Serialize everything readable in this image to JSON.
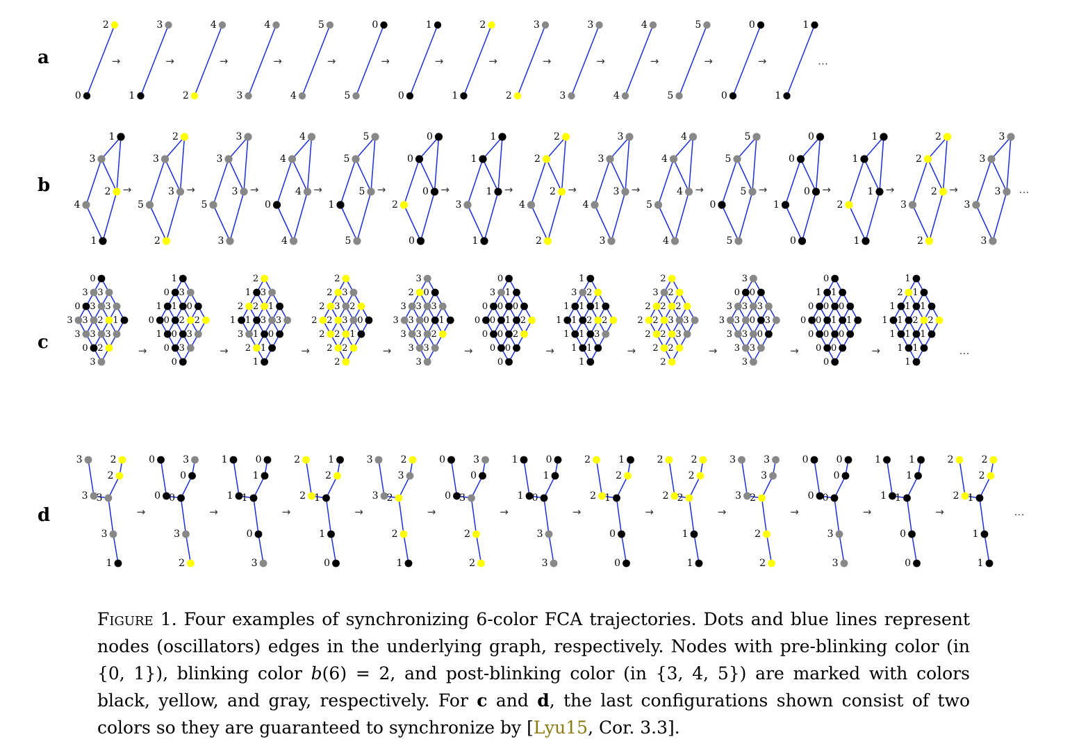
{
  "colors": {
    "pre_blinking": "#000000",
    "blinking": "#ffff00",
    "post_blinking": "#888888",
    "edge": "#1a2ed6"
  },
  "rows": [
    {
      "label": "a",
      "graph": "path-2",
      "nodes_per_config": 2,
      "configs": [
        [
          0,
          2
        ],
        [
          1,
          3
        ],
        [
          2,
          4
        ],
        [
          3,
          4
        ],
        [
          4,
          5
        ],
        [
          5,
          0
        ],
        [
          0,
          1
        ],
        [
          1,
          2
        ],
        [
          2,
          3
        ],
        [
          3,
          3
        ],
        [
          4,
          4
        ],
        [
          5,
          5
        ],
        [
          0,
          0
        ],
        [
          1,
          1
        ]
      ],
      "trailing": "…"
    },
    {
      "label": "b",
      "graph": "cycle-5",
      "nodes_per_config": 5,
      "configs": [
        [
          1,
          3,
          2,
          4,
          1
        ],
        [
          2,
          3,
          3,
          5,
          2
        ],
        [
          3,
          3,
          3,
          5,
          3
        ],
        [
          4,
          4,
          4,
          0,
          4
        ],
        [
          5,
          5,
          5,
          1,
          5
        ],
        [
          0,
          0,
          0,
          2,
          0
        ],
        [
          1,
          1,
          1,
          3,
          1
        ],
        [
          2,
          2,
          2,
          4,
          2
        ],
        [
          3,
          3,
          3,
          4,
          3
        ],
        [
          4,
          4,
          4,
          5,
          4
        ],
        [
          5,
          5,
          5,
          0,
          5
        ],
        [
          0,
          0,
          0,
          1,
          0
        ],
        [
          1,
          1,
          1,
          2,
          1
        ],
        [
          2,
          2,
          2,
          3,
          2
        ],
        [
          3,
          3,
          3,
          3,
          3
        ]
      ],
      "trailing": "…"
    },
    {
      "label": "c",
      "graph": "grid-4x4",
      "nodes_per_config": 16,
      "configs": [
        [
          0,
          3,
          3,
          1,
          3,
          3,
          2,
          3,
          0,
          3,
          3,
          2,
          3,
          3,
          0,
          3
        ],
        [
          1,
          3,
          0,
          2,
          0,
          1,
          2,
          3,
          1,
          0,
          0,
          3,
          0,
          1,
          0,
          0
        ],
        [
          2,
          3,
          1,
          3,
          1,
          2,
          3,
          0,
          2,
          1,
          1,
          1,
          1,
          3,
          2,
          1
        ],
        [
          2,
          3,
          2,
          0,
          2,
          3,
          3,
          1,
          2,
          2,
          2,
          2,
          2,
          2,
          2,
          2
        ],
        [
          3,
          0,
          3,
          1,
          2,
          3,
          0,
          2,
          3,
          3,
          3,
          3,
          3,
          3,
          3,
          3
        ],
        [
          0,
          1,
          0,
          2,
          3,
          0,
          1,
          2,
          0,
          0,
          0,
          0,
          0,
          0,
          0,
          0
        ],
        [
          1,
          2,
          1,
          2,
          3,
          1,
          2,
          3,
          1,
          1,
          1,
          1,
          1,
          1,
          1,
          1
        ],
        [
          2,
          2,
          2,
          3,
          3,
          2,
          3,
          3,
          2,
          2,
          2,
          2,
          2,
          2,
          2,
          2
        ],
        [
          3,
          0,
          3,
          3,
          0,
          3,
          0,
          0,
          3,
          3,
          3,
          3,
          3,
          3,
          3,
          3
        ],
        [
          0,
          1,
          0,
          1,
          1,
          0,
          1,
          0,
          0,
          0,
          0,
          0,
          0,
          0,
          0,
          0
        ],
        [
          1,
          1,
          1,
          2,
          2,
          1,
          2,
          1,
          1,
          1,
          1,
          1,
          1,
          1,
          1,
          1
        ]
      ],
      "trailing": "…"
    },
    {
      "label": "d",
      "graph": "tree-7",
      "nodes_per_config": 7,
      "configs": [
        [
          3,
          2,
          3,
          2,
          3,
          3,
          1
        ],
        [
          0,
          3,
          0,
          0,
          0,
          3,
          2
        ],
        [
          1,
          0,
          1,
          1,
          1,
          0,
          3
        ],
        [
          2,
          1,
          2,
          2,
          1,
          1,
          0
        ],
        [
          3,
          2,
          3,
          3,
          2,
          2,
          1
        ],
        [
          0,
          3,
          0,
          0,
          3,
          2,
          2
        ],
        [
          1,
          0,
          1,
          1,
          0,
          3,
          3
        ],
        [
          2,
          1,
          2,
          2,
          1,
          0,
          0
        ],
        [
          2,
          2,
          2,
          2,
          2,
          1,
          1
        ],
        [
          3,
          3,
          3,
          3,
          2,
          2,
          2
        ],
        [
          0,
          0,
          0,
          0,
          0,
          3,
          3
        ],
        [
          1,
          1,
          1,
          1,
          1,
          0,
          0
        ],
        [
          2,
          2,
          2,
          2,
          1,
          1,
          1
        ]
      ],
      "trailing": "…"
    }
  ],
  "arrow": "→",
  "caption": {
    "figure_label": "Figure 1.",
    "text_1": "Four examples of synchronizing 6-color FCA trajectories. Dots and blue lines represent nodes (oscillators) edges in the underlying graph, respectively. Nodes with pre-blinking color (in {0, 1}), blinking color ",
    "math_b": "b",
    "text_2": "(6) = 2, and post-blinking color (in {3, 4, 5}) are marked with colors black, yellow, and gray, respectively. For ",
    "bold_c": "c",
    "text_3": " and ",
    "bold_d": "d",
    "text_4": ", the last configurations shown consist of two colors so they are guaranteed to synchronize by [",
    "cite": "Lyu15",
    "text_5": ", Cor. 3.3]."
  }
}
